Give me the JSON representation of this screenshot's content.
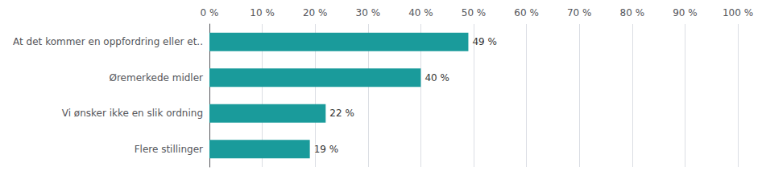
{
  "chart_data": {
    "type": "bar",
    "orientation": "horizontal",
    "categories": [
      "Flere stillinger",
      "Vi ønsker ikke en slik ordning",
      "Øremerkede midler",
      "At det kommer en oppfordring eller et.."
    ],
    "values": [
      19,
      22,
      40,
      49
    ],
    "value_labels": [
      "19 %",
      "22 %",
      "40 %",
      "49 %"
    ],
    "data_labels": true,
    "color": "#1a9b9b",
    "xlim": [
      0,
      100
    ],
    "xticks": [
      {
        "value": 0,
        "label": "0 %"
      },
      {
        "value": 10,
        "label": "10 %"
      },
      {
        "value": 20,
        "label": "20 %"
      },
      {
        "value": 30,
        "label": "30 %"
      },
      {
        "value": 40,
        "label": "40 %"
      },
      {
        "value": 50,
        "label": "50 %"
      },
      {
        "value": 60,
        "label": "60 %"
      },
      {
        "value": 70,
        "label": "70 %"
      },
      {
        "value": 80,
        "label": "80 %"
      },
      {
        "value": 90,
        "label": "90 %"
      },
      {
        "value": 100,
        "label": "100 %"
      }
    ],
    "grid": true
  }
}
